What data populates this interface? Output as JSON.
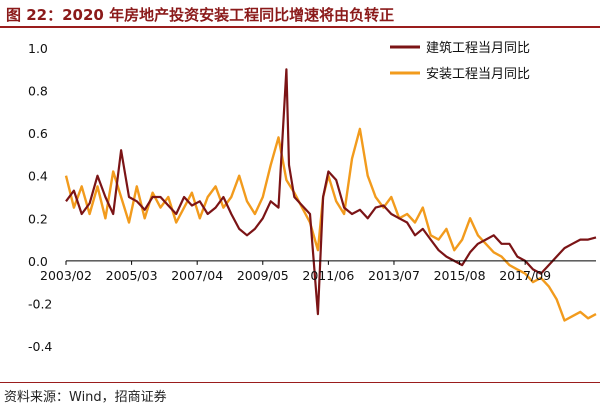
{
  "figure": {
    "title": "图 22：2020 年房地产投资安装工程同比增速将由负转正",
    "source": "资料来源：Wind，招商证券"
  },
  "chart_data": {
    "type": "line",
    "ylim": [
      -0.4,
      1.0
    ],
    "yticks": [
      1.0,
      0.8,
      0.6,
      0.4,
      0.2,
      0.0,
      -0.2,
      -0.4
    ],
    "ytick_labels": [
      "1.0",
      "0.8",
      "0.6",
      "0.4",
      "0.2",
      "0.0",
      "-0.2",
      "-0.4"
    ],
    "xlim": [
      "2003/02",
      "2019/12"
    ],
    "xticks": [
      "2003/02",
      "2005/03",
      "2007/04",
      "2009/05",
      "2011/06",
      "2013/07",
      "2015/08",
      "2017/09"
    ],
    "grid": false,
    "legend": "top-right",
    "series": [
      {
        "name": "建筑工程当月同比",
        "color": "#7b1416",
        "points": [
          [
            "2003/02",
            0.28
          ],
          [
            "2003/05",
            0.33
          ],
          [
            "2003/08",
            0.22
          ],
          [
            "2003/11",
            0.27
          ],
          [
            "2004/02",
            0.4
          ],
          [
            "2004/05",
            0.3
          ],
          [
            "2004/08",
            0.22
          ],
          [
            "2004/11",
            0.52
          ],
          [
            "2005/02",
            0.3
          ],
          [
            "2005/05",
            0.28
          ],
          [
            "2005/08",
            0.24
          ],
          [
            "2005/11",
            0.3
          ],
          [
            "2006/02",
            0.3
          ],
          [
            "2006/05",
            0.26
          ],
          [
            "2006/08",
            0.22
          ],
          [
            "2006/11",
            0.3
          ],
          [
            "2007/02",
            0.26
          ],
          [
            "2007/05",
            0.28
          ],
          [
            "2007/08",
            0.22
          ],
          [
            "2007/11",
            0.25
          ],
          [
            "2008/02",
            0.3
          ],
          [
            "2008/05",
            0.22
          ],
          [
            "2008/08",
            0.15
          ],
          [
            "2008/11",
            0.12
          ],
          [
            "2009/02",
            0.15
          ],
          [
            "2009/05",
            0.2
          ],
          [
            "2009/08",
            0.28
          ],
          [
            "2009/11",
            0.25
          ],
          [
            "2010/02",
            0.9
          ],
          [
            "2010/03",
            0.45
          ],
          [
            "2010/05",
            0.3
          ],
          [
            "2010/08",
            0.26
          ],
          [
            "2010/11",
            0.22
          ],
          [
            "2011/02",
            -0.25
          ],
          [
            "2011/04",
            0.3
          ],
          [
            "2011/06",
            0.42
          ],
          [
            "2011/09",
            0.38
          ],
          [
            "2011/12",
            0.25
          ],
          [
            "2012/03",
            0.22
          ],
          [
            "2012/06",
            0.24
          ],
          [
            "2012/09",
            0.2
          ],
          [
            "2012/12",
            0.25
          ],
          [
            "2013/03",
            0.26
          ],
          [
            "2013/06",
            0.22
          ],
          [
            "2013/09",
            0.2
          ],
          [
            "2013/12",
            0.18
          ],
          [
            "2014/03",
            0.12
          ],
          [
            "2014/06",
            0.15
          ],
          [
            "2014/09",
            0.1
          ],
          [
            "2014/12",
            0.05
          ],
          [
            "2015/03",
            0.02
          ],
          [
            "2015/06",
            0.0
          ],
          [
            "2015/09",
            -0.02
          ],
          [
            "2015/12",
            0.04
          ],
          [
            "2016/03",
            0.08
          ],
          [
            "2016/06",
            0.1
          ],
          [
            "2016/09",
            0.12
          ],
          [
            "2016/12",
            0.08
          ],
          [
            "2017/03",
            0.08
          ],
          [
            "2017/06",
            0.02
          ],
          [
            "2017/09",
            0.0
          ],
          [
            "2017/12",
            -0.04
          ],
          [
            "2018/03",
            -0.06
          ],
          [
            "2018/06",
            -0.02
          ],
          [
            "2018/09",
            0.02
          ],
          [
            "2018/12",
            0.06
          ],
          [
            "2019/03",
            0.08
          ],
          [
            "2019/06",
            0.1
          ],
          [
            "2019/09",
            0.1
          ],
          [
            "2019/12",
            0.11
          ]
        ]
      },
      {
        "name": "安装工程当月同比",
        "color": "#f29b1d",
        "points": [
          [
            "2003/02",
            0.4
          ],
          [
            "2003/05",
            0.25
          ],
          [
            "2003/08",
            0.35
          ],
          [
            "2003/11",
            0.22
          ],
          [
            "2004/02",
            0.35
          ],
          [
            "2004/05",
            0.2
          ],
          [
            "2004/08",
            0.42
          ],
          [
            "2004/11",
            0.3
          ],
          [
            "2005/02",
            0.18
          ],
          [
            "2005/05",
            0.35
          ],
          [
            "2005/08",
            0.2
          ],
          [
            "2005/11",
            0.32
          ],
          [
            "2006/02",
            0.25
          ],
          [
            "2006/05",
            0.3
          ],
          [
            "2006/08",
            0.18
          ],
          [
            "2006/11",
            0.25
          ],
          [
            "2007/02",
            0.32
          ],
          [
            "2007/05",
            0.2
          ],
          [
            "2007/08",
            0.3
          ],
          [
            "2007/11",
            0.35
          ],
          [
            "2008/02",
            0.25
          ],
          [
            "2008/05",
            0.3
          ],
          [
            "2008/08",
            0.4
          ],
          [
            "2008/11",
            0.28
          ],
          [
            "2009/02",
            0.22
          ],
          [
            "2009/05",
            0.3
          ],
          [
            "2009/08",
            0.45
          ],
          [
            "2009/11",
            0.58
          ],
          [
            "2010/02",
            0.38
          ],
          [
            "2010/05",
            0.32
          ],
          [
            "2010/08",
            0.25
          ],
          [
            "2010/11",
            0.18
          ],
          [
            "2011/02",
            0.05
          ],
          [
            "2011/04",
            0.3
          ],
          [
            "2011/06",
            0.4
          ],
          [
            "2011/09",
            0.28
          ],
          [
            "2011/12",
            0.22
          ],
          [
            "2012/03",
            0.48
          ],
          [
            "2012/06",
            0.62
          ],
          [
            "2012/09",
            0.4
          ],
          [
            "2012/12",
            0.3
          ],
          [
            "2013/03",
            0.25
          ],
          [
            "2013/06",
            0.3
          ],
          [
            "2013/09",
            0.2
          ],
          [
            "2013/12",
            0.22
          ],
          [
            "2014/03",
            0.18
          ],
          [
            "2014/06",
            0.25
          ],
          [
            "2014/09",
            0.12
          ],
          [
            "2014/12",
            0.1
          ],
          [
            "2015/03",
            0.15
          ],
          [
            "2015/06",
            0.05
          ],
          [
            "2015/09",
            0.1
          ],
          [
            "2015/12",
            0.2
          ],
          [
            "2016/03",
            0.12
          ],
          [
            "2016/06",
            0.08
          ],
          [
            "2016/09",
            0.04
          ],
          [
            "2016/12",
            0.02
          ],
          [
            "2017/03",
            -0.02
          ],
          [
            "2017/06",
            -0.04
          ],
          [
            "2017/09",
            -0.06
          ],
          [
            "2017/12",
            -0.1
          ],
          [
            "2018/03",
            -0.08
          ],
          [
            "2018/06",
            -0.12
          ],
          [
            "2018/09",
            -0.18
          ],
          [
            "2018/12",
            -0.28
          ],
          [
            "2019/03",
            -0.26
          ],
          [
            "2019/06",
            -0.24
          ],
          [
            "2019/09",
            -0.27
          ],
          [
            "2019/12",
            -0.25
          ]
        ]
      }
    ]
  }
}
